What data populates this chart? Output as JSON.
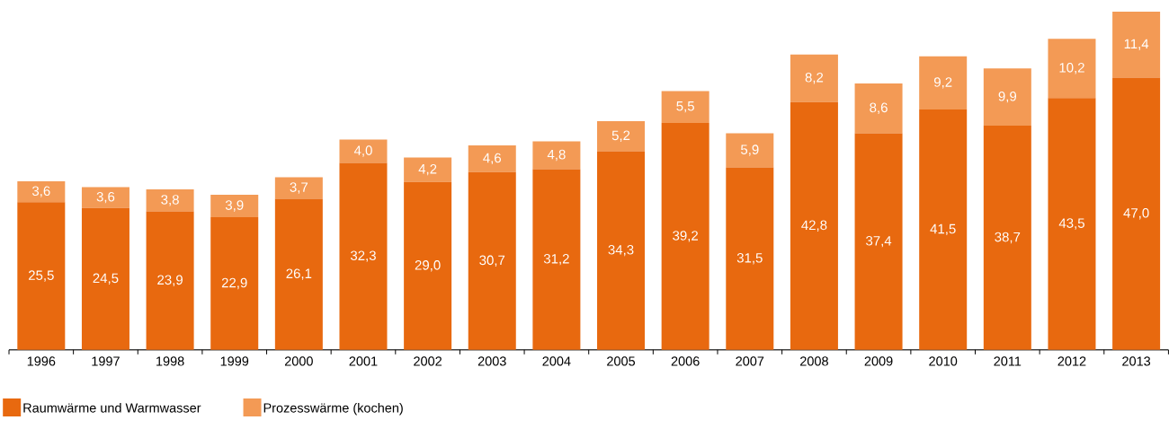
{
  "chart_data": {
    "type": "bar",
    "stacked": true,
    "legend": "bottom left",
    "categories": [
      "1996",
      "1997",
      "1998",
      "1999",
      "2000",
      "2001",
      "2002",
      "2003",
      "2004",
      "2005",
      "2006",
      "2007",
      "2008",
      "2009",
      "2010",
      "2011",
      "2012",
      "2013"
    ],
    "series": [
      {
        "name": "Raumwärme und Warmwasser",
        "color": "#e8690f",
        "values": [
          25.5,
          24.5,
          23.9,
          22.9,
          26.1,
          32.3,
          29.0,
          30.7,
          31.2,
          34.3,
          39.2,
          31.5,
          42.8,
          37.4,
          41.5,
          38.7,
          43.5,
          47.0
        ],
        "value_labels": [
          "25,5",
          "24,5",
          "23,9",
          "22,9",
          "26,1",
          "32,3",
          "29,0",
          "30,7",
          "31,2",
          "34,3",
          "39,2",
          "31,5",
          "42,8",
          "37,4",
          "41,5",
          "38,7",
          "43,5",
          "47,0"
        ]
      },
      {
        "name": "Prozesswärme (kochen)",
        "color": "#f39a55",
        "values": [
          3.6,
          3.6,
          3.8,
          3.9,
          3.7,
          4.0,
          4.2,
          4.6,
          4.8,
          5.2,
          5.5,
          5.9,
          8.2,
          8.6,
          9.2,
          9.9,
          10.2,
          11.4
        ],
        "value_labels": [
          "3,6",
          "3,6",
          "3,8",
          "3,9",
          "3,7",
          "4,0",
          "4,2",
          "4,6",
          "4,8",
          "5,2",
          "5,5",
          "5,9",
          "8,2",
          "8,6",
          "9,2",
          "9,9",
          "10,2",
          "11,4"
        ]
      }
    ]
  }
}
